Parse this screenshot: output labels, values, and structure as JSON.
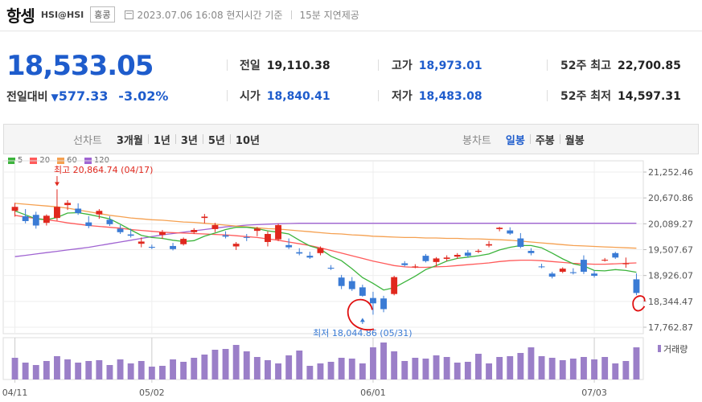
{
  "header": {
    "name": "항셍",
    "code": "HSI@HSI",
    "market": "홍콩",
    "timestamp": "2023.07.06 16:08 현지시간 기준",
    "delay": "15분 지연제공"
  },
  "quote": {
    "price": "18,533.05",
    "change_label": "전일대비",
    "change": "577.33",
    "change_pct": "-3.02%",
    "stats": [
      {
        "label": "전일",
        "value": "19,110.38"
      },
      {
        "label": "고가",
        "value": "18,973.01"
      },
      {
        "label": "52주 최고",
        "value": "22,700.85"
      },
      {
        "label": "시가",
        "value": "18,840.41"
      },
      {
        "label": "저가",
        "value": "18,483.08"
      },
      {
        "label": "52주 최저",
        "value": "14,597.31"
      }
    ]
  },
  "toolbar": {
    "line_caption": "선차트",
    "line_periods": [
      "3개월",
      "1년",
      "3년",
      "5년",
      "10년"
    ],
    "candle_caption": "봉차트",
    "candle_periods": [
      "일봉",
      "주봉",
      "월봉"
    ],
    "active_candle": "일봉"
  },
  "colors": {
    "up": "#e0281e",
    "down": "#3a7bd5",
    "ma5": "#3cb43c",
    "ma20": "#ff5a5a",
    "ma60": "#f5a050",
    "ma120": "#a064d2",
    "volume": "#9b7fc8",
    "accent": "#1e5ccc"
  },
  "chart_data": {
    "type": "candlestick",
    "ma_legend": [
      "5",
      "20",
      "60",
      "120"
    ],
    "y_ticks": [
      "21,252.46",
      "20,670.86",
      "20,089.27",
      "19,507.67",
      "18,926.07",
      "18,344.47",
      "17,762.87"
    ],
    "ylim": [
      17762.87,
      21252.46
    ],
    "x_ticks": [
      {
        "label": "04/11",
        "index": 0
      },
      {
        "label": "05/02",
        "index": 13
      },
      {
        "label": "06/01",
        "index": 34
      },
      {
        "label": "07/03",
        "index": 55
      }
    ],
    "annotations": [
      {
        "label": "최고 20,864.74 (04/17)",
        "index": 4,
        "value": 20864.74
      },
      {
        "label": "최저 18,044.86 (05/31)",
        "index": 33,
        "value": 18044.86
      }
    ],
    "volume_label": "거래량",
    "candles": [
      [
        20380,
        20560,
        20250,
        20470
      ],
      [
        20260,
        20420,
        20100,
        20150
      ],
      [
        20290,
        20360,
        19980,
        20050
      ],
      [
        20110,
        20300,
        20050,
        20270
      ],
      [
        20220,
        20864.74,
        20160,
        20470
      ],
      [
        20510,
        20620,
        20400,
        20560
      ],
      [
        20430,
        20550,
        20290,
        20330
      ],
      [
        20120,
        20260,
        19990,
        20040
      ],
      [
        20300,
        20420,
        20200,
        20380
      ],
      [
        20180,
        20260,
        20040,
        20080
      ],
      [
        19980,
        20060,
        19860,
        19900
      ],
      [
        19850,
        19980,
        19780,
        19820
      ],
      [
        19640,
        19780,
        19560,
        19690
      ],
      [
        19570,
        19620,
        19520,
        19550
      ],
      [
        19840,
        19950,
        19750,
        19900
      ],
      [
        19590,
        19660,
        19490,
        19520
      ],
      [
        19630,
        19780,
        19600,
        19750
      ],
      [
        19900,
        19990,
        19860,
        19950
      ],
      [
        20220,
        20310,
        20100,
        20250
      ],
      [
        19970,
        20110,
        19900,
        20060
      ],
      [
        19830,
        19920,
        19760,
        19800
      ],
      [
        19580,
        19680,
        19500,
        19640
      ],
      [
        19790,
        19860,
        19700,
        19780
      ],
      [
        19930,
        20020,
        19810,
        19980
      ],
      [
        19680,
        19920,
        19580,
        19860
      ],
      [
        19740,
        20090,
        19700,
        20060
      ],
      [
        19610,
        19760,
        19520,
        19560
      ],
      [
        19450,
        19540,
        19380,
        19420
      ],
      [
        19370,
        19460,
        19300,
        19330
      ],
      [
        19430,
        19580,
        19380,
        19540
      ],
      [
        19100,
        19160,
        19050,
        19080
      ],
      [
        18880,
        18940,
        18620,
        18690
      ],
      [
        18800,
        18890,
        18580,
        18620
      ],
      [
        18660,
        18720,
        18450,
        18470
      ],
      [
        18420,
        18560,
        18044.86,
        18300
      ],
      [
        18410,
        18470,
        18100,
        18170
      ],
      [
        18510,
        18920,
        18480,
        18890
      ],
      [
        19200,
        19250,
        19130,
        19160
      ],
      [
        19120,
        19180,
        19090,
        19130
      ],
      [
        19370,
        19410,
        19220,
        19250
      ],
      [
        19230,
        19340,
        19130,
        19310
      ],
      [
        19300,
        19380,
        19250,
        19330
      ],
      [
        19350,
        19430,
        19300,
        19390
      ],
      [
        19440,
        19500,
        19330,
        19370
      ],
      [
        19460,
        19520,
        19430,
        19480
      ],
      [
        19600,
        19700,
        19560,
        19630
      ],
      [
        19970,
        20020,
        19920,
        20000
      ],
      [
        19940,
        20010,
        19840,
        19870
      ],
      [
        19760,
        19880,
        19540,
        19570
      ],
      [
        19480,
        19540,
        19380,
        19430
      ],
      [
        19130,
        19190,
        19090,
        19120
      ],
      [
        18970,
        19010,
        18860,
        18900
      ],
      [
        19010,
        19110,
        18980,
        19080
      ],
      [
        19000,
        19090,
        18950,
        18980
      ],
      [
        19280,
        19380,
        18960,
        19010
      ],
      [
        18970,
        19040,
        18880,
        18920
      ],
      [
        19260,
        19320,
        19240,
        19280
      ],
      [
        19430,
        19460,
        19300,
        19330
      ],
      [
        19180,
        19330,
        19100,
        19200
      ],
      [
        18840.41,
        18973.01,
        18483.08,
        18533.05
      ]
    ],
    "ma": {
      "5": [
        20380,
        20290,
        20200,
        20180,
        20230,
        20330,
        20340,
        20300,
        20250,
        20200,
        20080,
        19950,
        19830,
        19780,
        19760,
        19720,
        19690,
        19710,
        19810,
        19880,
        19960,
        20010,
        20010,
        19980,
        19930,
        19900,
        19860,
        19720,
        19590,
        19520,
        19360,
        19260,
        19080,
        18880,
        18750,
        18600,
        18650,
        18780,
        18910,
        19060,
        19150,
        19250,
        19310,
        19340,
        19370,
        19410,
        19500,
        19560,
        19600,
        19600,
        19550,
        19430,
        19300,
        19190,
        19140,
        19040,
        19030,
        19060,
        19040,
        19000
      ],
      "20": [
        20280,
        20240,
        20210,
        20180,
        20150,
        20110,
        20080,
        20050,
        20030,
        20010,
        19990,
        19960,
        19940,
        19920,
        19900,
        19890,
        19880,
        19870,
        19860,
        19850,
        19840,
        19820,
        19800,
        19780,
        19750,
        19720,
        19680,
        19640,
        19600,
        19550,
        19490,
        19430,
        19370,
        19310,
        19250,
        19200,
        19150,
        19120,
        19110,
        19110,
        19120,
        19130,
        19150,
        19170,
        19190,
        19210,
        19240,
        19260,
        19270,
        19270,
        19260,
        19240,
        19220,
        19200,
        19190,
        19180,
        19180,
        19190,
        19200,
        19210
      ],
      "60": [
        20550,
        20530,
        20510,
        20490,
        20470,
        20440,
        20400,
        20360,
        20320,
        20280,
        20250,
        20220,
        20200,
        20180,
        20170,
        20150,
        20130,
        20120,
        20100,
        20080,
        20060,
        20040,
        20020,
        20000,
        19980,
        19970,
        19950,
        19930,
        19910,
        19890,
        19870,
        19860,
        19840,
        19830,
        19810,
        19800,
        19790,
        19780,
        19780,
        19770,
        19770,
        19760,
        19760,
        19750,
        19750,
        19740,
        19730,
        19720,
        19700,
        19680,
        19660,
        19640,
        19620,
        19600,
        19590,
        19580,
        19570,
        19560,
        19550,
        19540
      ],
      "120": [
        19350,
        19380,
        19410,
        19440,
        19470,
        19500,
        19530,
        19560,
        19600,
        19640,
        19680,
        19720,
        19760,
        19800,
        19840,
        19870,
        19900,
        19930,
        19960,
        19990,
        20020,
        20040,
        20060,
        20070,
        20080,
        20090,
        20095,
        20100,
        20100,
        20100,
        20100,
        20100,
        20100,
        20100,
        20100,
        20100,
        20100,
        20100,
        20100,
        20100,
        20100,
        20100,
        20100,
        20100,
        20100,
        20100,
        20100,
        20100,
        20100,
        20100,
        20100,
        20100,
        20100,
        20100,
        20100,
        20100,
        20100,
        20100,
        20100,
        20100
      ]
    },
    "volume": [
      27,
      21,
      18,
      23,
      29,
      25,
      21,
      23,
      24,
      18,
      25,
      20,
      23,
      16,
      17,
      25,
      22,
      27,
      31,
      37,
      38,
      43,
      35,
      28,
      24,
      20,
      30,
      36,
      17,
      20,
      22,
      27,
      26,
      20,
      40,
      46,
      35,
      23,
      27,
      26,
      30,
      28,
      21,
      22,
      32,
      20,
      28,
      29,
      33,
      40,
      29,
      27,
      24,
      26,
      28,
      25,
      28,
      20,
      23,
      40
    ]
  }
}
